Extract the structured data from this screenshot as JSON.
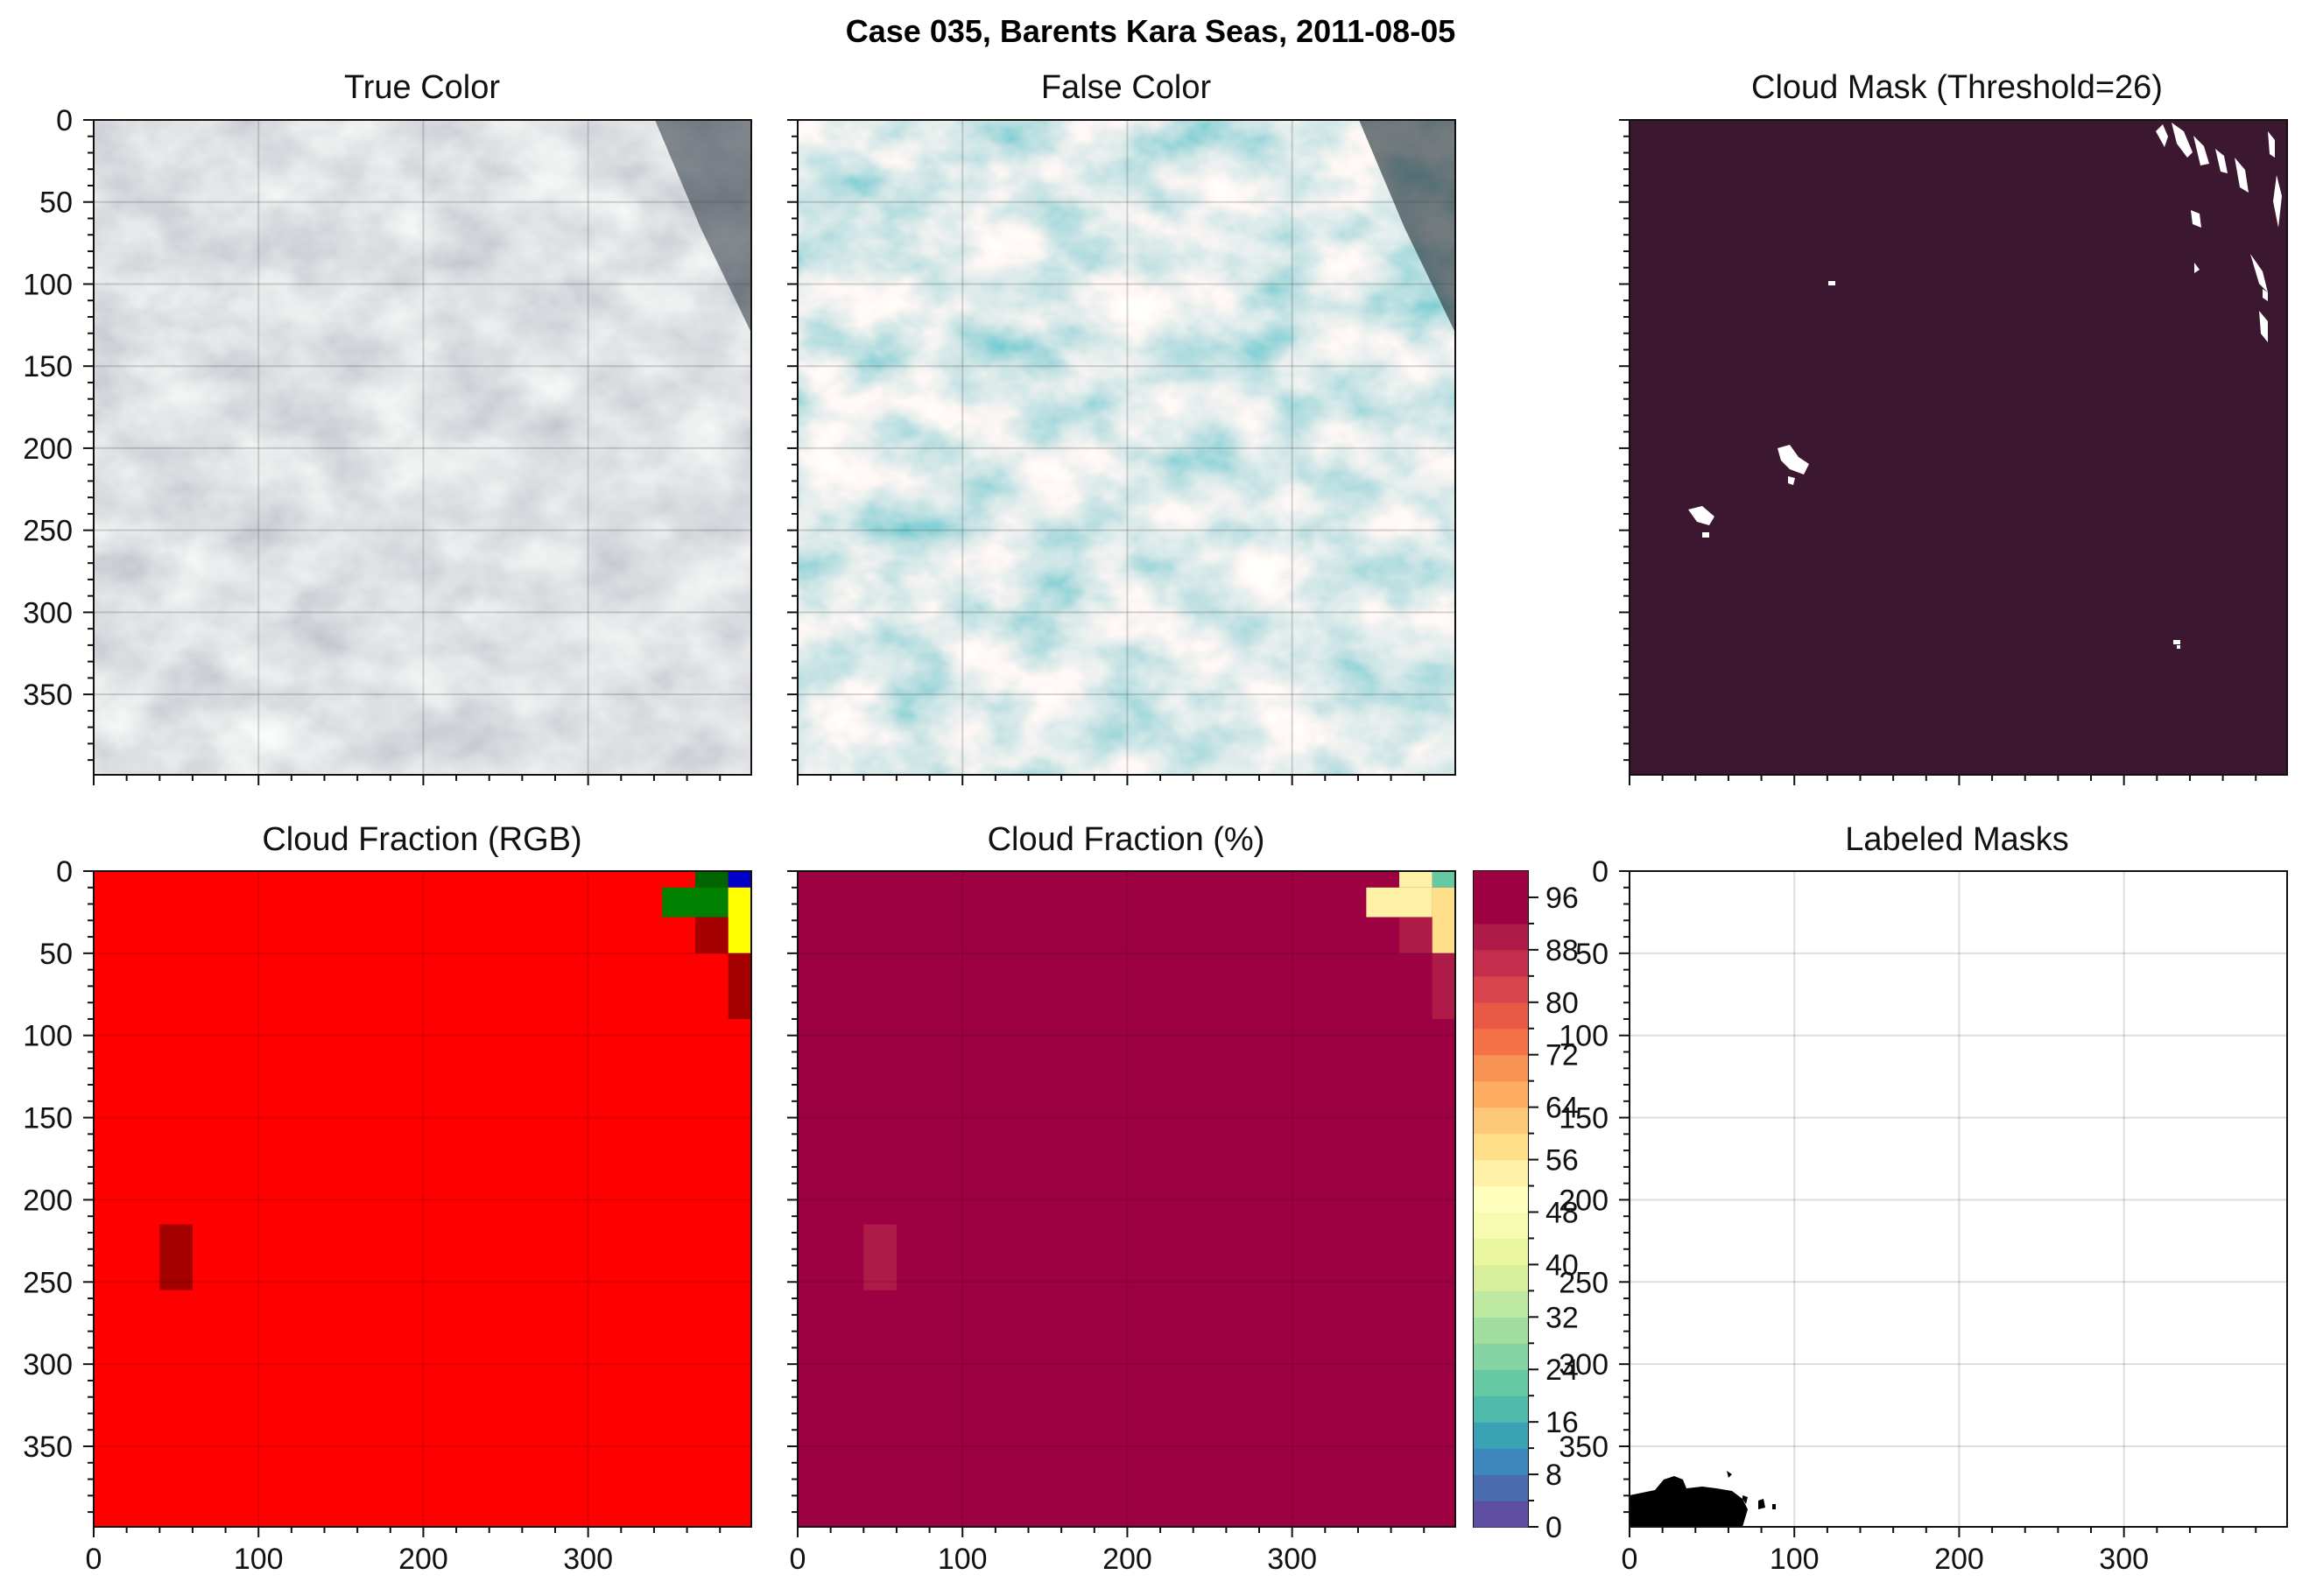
{
  "figure": {
    "title": "Case 035, Barents Kara Seas, 2011-08-05"
  },
  "panels": {
    "true_color": {
      "title": "True Color"
    },
    "false_color": {
      "title": "False Color"
    },
    "cloud_mask": {
      "title": "Cloud Mask (Threshold=26)"
    },
    "cf_rgb": {
      "title": "Cloud Fraction (RGB)"
    },
    "cf_pct": {
      "title": "Cloud Fraction (%)"
    },
    "labeled": {
      "title": "Labeled Masks"
    }
  },
  "axes": {
    "x_ticks": [
      "0",
      "100",
      "200",
      "300"
    ],
    "y_ticks": [
      "0",
      "50",
      "100",
      "150",
      "200",
      "250",
      "300",
      "350"
    ],
    "xlim": [
      0,
      399
    ],
    "ylim": [
      399,
      0
    ]
  },
  "colorbar": {
    "ticks": [
      "0",
      "8",
      "16",
      "24",
      "32",
      "40",
      "48",
      "56",
      "64",
      "72",
      "80",
      "88",
      "96"
    ],
    "range": [
      0,
      100
    ],
    "steps": 25,
    "colors": [
      "#5e4fa2",
      "#4c6cb0",
      "#3d89be",
      "#3aa2b5",
      "#4fb9ab",
      "#67c9a4",
      "#86d4a4",
      "#a2de9f",
      "#bee9a0",
      "#d7ef9b",
      "#eaf79e",
      "#f6fbb1",
      "#fefebd",
      "#fef1a6",
      "#fee08b",
      "#fdc877",
      "#fdad60",
      "#f99355",
      "#f47245",
      "#e85a45",
      "#d9444e",
      "#c42d4c",
      "#ae1b49",
      "#9e0142",
      "#9e0142"
    ]
  },
  "colors": {
    "mask_bg": "#3c1830",
    "cf_red": "#ff0000",
    "cf_darkred": "#a50000",
    "cf_green": "#008000",
    "cf_darkgreen": "#006400",
    "cf_yellow": "#ffff00",
    "cf_blue": "#0000c8",
    "cf_max": "#9e0142",
    "cf_high": "#c83c50",
    "cf_pale": "#fefebd",
    "cf_paler": "#f8f1b0",
    "cf_teal": "#66c2a5"
  },
  "chart_data": [
    {
      "type": "heatmap",
      "title": "Cloud Fraction (%)",
      "xlim": [
        0,
        399
      ],
      "ylim": [
        399,
        0
      ],
      "background_value": 100,
      "blocks": [
        {
          "x": [
            345,
            399
          ],
          "y": [
            0,
            10
          ],
          "value": 100
        },
        {
          "x": [
            365,
            385
          ],
          "y": [
            0,
            10
          ],
          "value": 55
        },
        {
          "x": [
            385,
            399
          ],
          "y": [
            0,
            10
          ],
          "value": 22
        },
        {
          "x": [
            345,
            365
          ],
          "y": [
            10,
            28
          ],
          "value": 54
        },
        {
          "x": [
            365,
            385
          ],
          "y": [
            10,
            28
          ],
          "value": 54
        },
        {
          "x": [
            385,
            399
          ],
          "y": [
            10,
            50
          ],
          "value": 58
        },
        {
          "x": [
            365,
            385
          ],
          "y": [
            28,
            50
          ],
          "value": 90
        },
        {
          "x": [
            385,
            399
          ],
          "y": [
            50,
            90
          ],
          "value": 90
        },
        {
          "x": [
            40,
            60
          ],
          "y": [
            215,
            255
          ],
          "value": 90
        }
      ]
    },
    {
      "type": "heatmap",
      "title": "Cloud Fraction (RGB)",
      "xlim": [
        0,
        399
      ],
      "ylim": [
        399,
        0
      ],
      "background": "red",
      "blocks": [
        {
          "x": [
            365,
            385
          ],
          "y": [
            0,
            10
          ],
          "color": "darkgreen"
        },
        {
          "x": [
            385,
            399
          ],
          "y": [
            0,
            10
          ],
          "color": "blue"
        },
        {
          "x": [
            345,
            385
          ],
          "y": [
            10,
            28
          ],
          "color": "green"
        },
        {
          "x": [
            385,
            399
          ],
          "y": [
            10,
            50
          ],
          "color": "yellow"
        },
        {
          "x": [
            365,
            385
          ],
          "y": [
            28,
            50
          ],
          "color": "darkred"
        },
        {
          "x": [
            385,
            399
          ],
          "y": [
            50,
            90
          ],
          "color": "darkred"
        },
        {
          "x": [
            40,
            60
          ],
          "y": [
            215,
            255
          ],
          "color": "darkred"
        }
      ]
    }
  ]
}
